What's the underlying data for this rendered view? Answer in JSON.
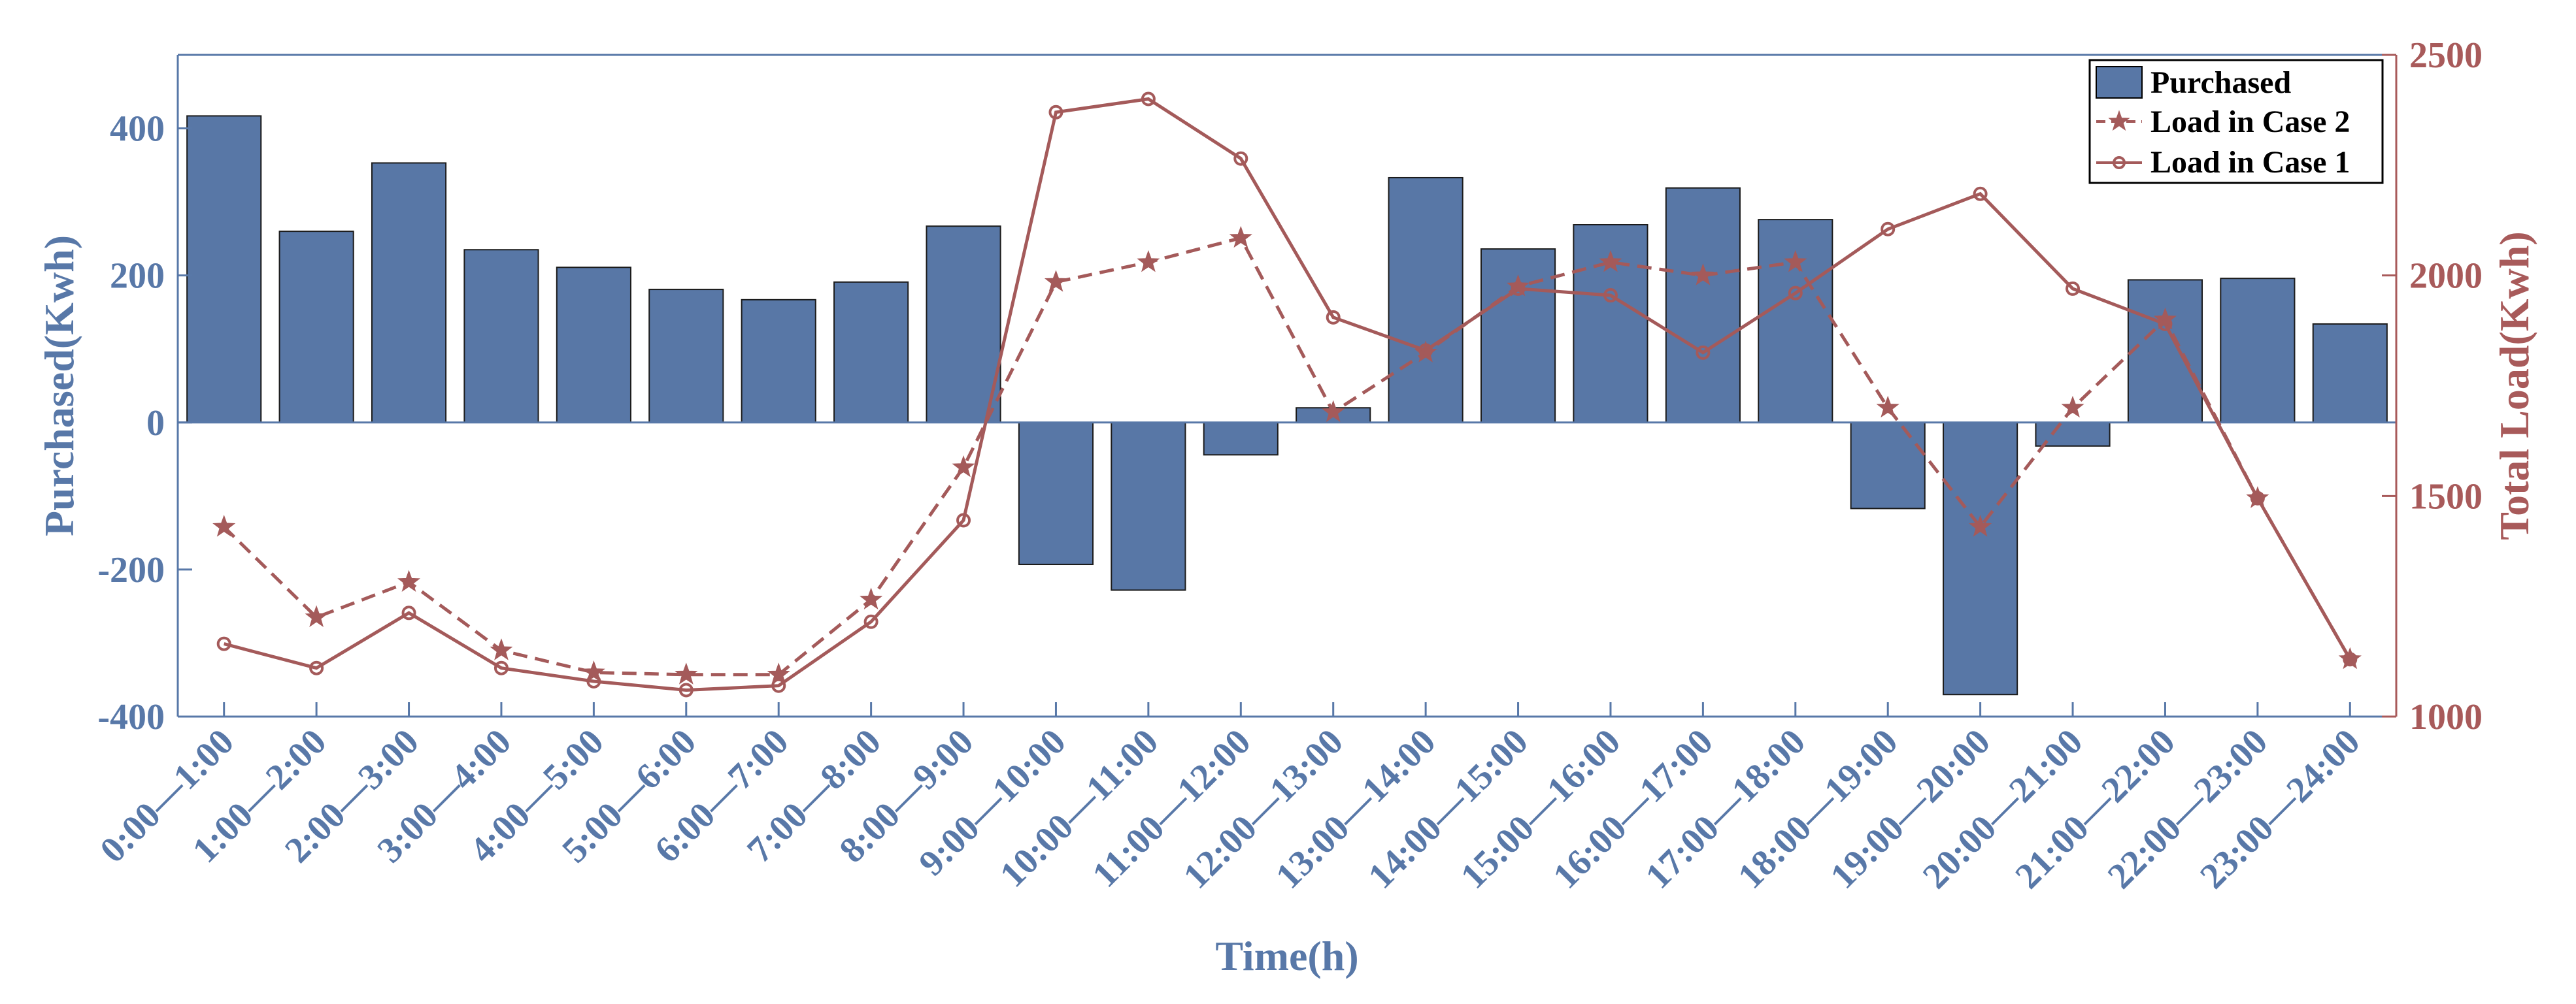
{
  "chart_data": {
    "type": "bar",
    "title": "",
    "xlabel": "Time(h)",
    "ylabel_left": "Purchased(Kwh)",
    "ylabel_right": "Total Load(Kwh)",
    "ylim_left": [
      -400,
      500
    ],
    "ylim_right": [
      1000,
      2500
    ],
    "yticks_left": [
      -400,
      -200,
      0,
      200,
      400
    ],
    "yticks_right": [
      1000,
      1500,
      2000,
      2500
    ],
    "grid": false,
    "legend_position": "top-right",
    "colors": {
      "bar": "#5877a6",
      "line": "#a45a5a",
      "left_axis": "#5878a8",
      "right_axis": "#a85a5a"
    },
    "categories": [
      "0:00—1:00",
      "1:00—2:00",
      "2:00—3:00",
      "3:00—4:00",
      "4:00—5:00",
      "5:00—6:00",
      "6:00—7:00",
      "7:00—8:00",
      "8:00—9:00",
      "9:00—10:00",
      "10:00—11:00",
      "11:00—12:00",
      "12:00—13:00",
      "13:00—14:00",
      "14:00—15:00",
      "15:00—16:00",
      "16:00—17:00",
      "17:00—18:00",
      "18:00—19:00",
      "19:00—20:00",
      "20:00—21:00",
      "21:00—22:00",
      "22:00—23:00",
      "23:00—24:00"
    ],
    "series": [
      {
        "name": "Purchased",
        "type": "bar",
        "axis": "left",
        "values": [
          417,
          260,
          353,
          235,
          211,
          181,
          167,
          191,
          267,
          -193,
          -228,
          -44,
          20,
          333,
          236,
          269,
          319,
          276,
          -117,
          -370,
          -32,
          194,
          196,
          134
        ]
      },
      {
        "name": "Load in Case 2",
        "type": "line",
        "style": "dashed",
        "marker": "star",
        "axis": "right",
        "values": [
          1430,
          1225,
          1305,
          1150,
          1100,
          1095,
          1095,
          1265,
          1565,
          1985,
          2030,
          2085,
          1690,
          1825,
          1975,
          2030,
          2000,
          2030,
          1700,
          1430,
          1700,
          1900,
          1495,
          1130
        ]
      },
      {
        "name": "Load in Case 1",
        "type": "line",
        "style": "solid",
        "marker": "circle",
        "axis": "right",
        "values": [
          1165,
          1110,
          1235,
          1110,
          1080,
          1060,
          1070,
          1215,
          1445,
          2370,
          2400,
          2265,
          1905,
          1830,
          1970,
          1955,
          1825,
          1960,
          2105,
          2185,
          1970,
          1890,
          1495,
          1130
        ]
      }
    ]
  }
}
